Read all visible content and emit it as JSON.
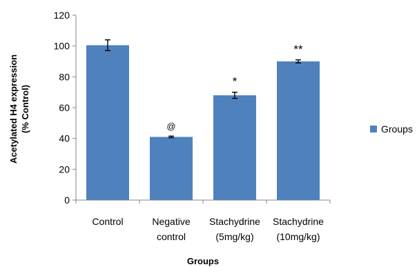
{
  "chart_data": {
    "type": "bar",
    "categories": [
      [
        "Control"
      ],
      [
        "Negative",
        "control"
      ],
      [
        "Stachydrine",
        "(5mg/kg)"
      ],
      [
        "Stachydrine",
        "(10mg/kg)"
      ]
    ],
    "series": [
      {
        "name": "Groups",
        "color": "#4F81BD",
        "values": [
          100.5,
          41,
          68,
          90
        ],
        "errors": [
          3.5,
          0.5,
          2,
          1
        ],
        "annotations": [
          "",
          "@",
          "*",
          "**"
        ]
      }
    ],
    "ylabel_lines": [
      "Acetylated H4 expression",
      "(% Control)"
    ],
    "xlabel": "Groups",
    "ylim": [
      0,
      120
    ],
    "yticks": [
      0,
      20,
      40,
      60,
      80,
      100,
      120
    ],
    "legend_position": "right",
    "grid": false
  }
}
